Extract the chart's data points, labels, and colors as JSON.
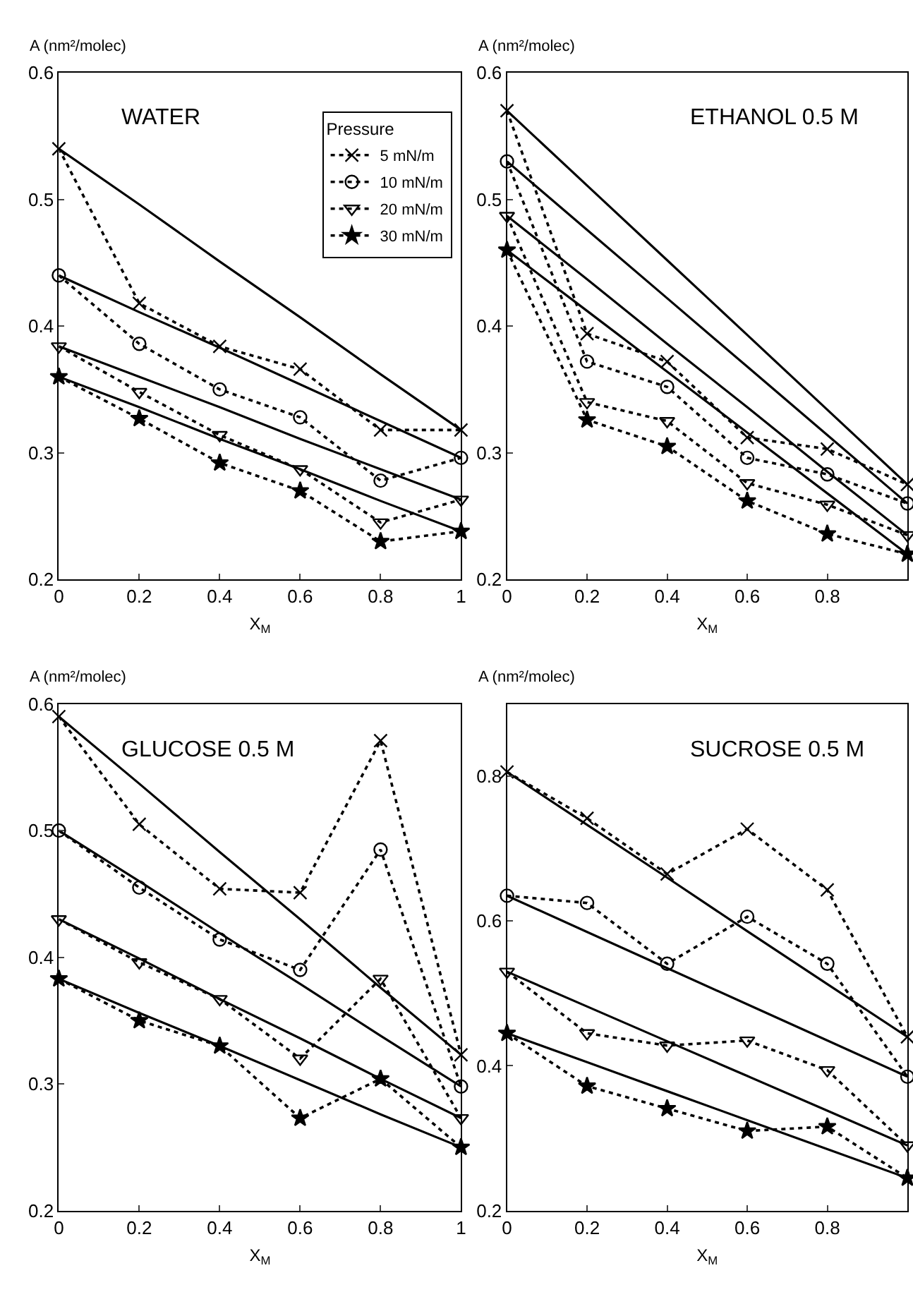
{
  "chart_data": [
    {
      "type": "line",
      "title": "WATER",
      "xlabel": "X$_{M}$",
      "ylabel": "A (nm²/molec)",
      "legend_title": "Pressure",
      "legend": "top right",
      "x": [
        0,
        0.2,
        0.4,
        0.6,
        0.8,
        1
      ],
      "xlim": [
        0,
        1
      ],
      "xticks": [
        0,
        0.2,
        0.4,
        0.6,
        0.8,
        1
      ],
      "ylim": [
        0.2,
        0.6
      ],
      "yticks": [
        0.2,
        0.3,
        0.4,
        0.5,
        0.6
      ],
      "series": [
        {
          "name": "5 mN/m",
          "color": "#000000",
          "marker": "cross",
          "line_style": "dotted",
          "values": [
            0.54,
            0.418,
            0.384,
            0.366,
            0.318,
            0.318
          ]
        },
        {
          "name": "10 mN/m",
          "color": "#000000",
          "marker": "circle",
          "line_style": "dotted",
          "values": [
            0.44,
            0.386,
            0.35,
            0.328,
            0.278,
            0.296
          ]
        },
        {
          "name": "20 mN/m",
          "color": "#000000",
          "marker": "triangle",
          "line_style": "dotted",
          "values": [
            0.384,
            0.348,
            0.314,
            0.287,
            0.245,
            0.263
          ]
        },
        {
          "name": "30 mN/m",
          "color": "#000000",
          "marker": "star",
          "line_style": "dotted",
          "values": [
            0.36,
            0.327,
            0.292,
            0.27,
            0.23,
            0.238
          ]
        },
        {
          "color": "#000000",
          "marker": "none",
          "line_style": "solid",
          "values": [
            0.54,
            0.496,
            0.451,
            0.407,
            0.362,
            0.318
          ]
        },
        {
          "color": "#000000",
          "marker": "none",
          "line_style": "solid",
          "values": [
            0.44,
            0.411,
            0.383,
            0.354,
            0.325,
            0.296
          ]
        },
        {
          "color": "#000000",
          "marker": "none",
          "line_style": "solid",
          "values": [
            0.384,
            0.36,
            0.336,
            0.311,
            0.287,
            0.263
          ]
        },
        {
          "color": "#000000",
          "marker": "none",
          "line_style": "solid",
          "values": [
            0.36,
            0.336,
            0.311,
            0.287,
            0.262,
            0.238
          ]
        }
      ]
    },
    {
      "type": "line",
      "title": "ETHANOL 0.5 M",
      "xlabel": "X$_{M}$",
      "ylabel": "A (nm²/molec)",
      "x": [
        0,
        0.2,
        0.4,
        0.6,
        0.8,
        1
      ],
      "xlim": [
        0,
        1
      ],
      "xticks": [
        0,
        0.2,
        0.4,
        0.6,
        0.8
      ],
      "ylim": [
        0.2,
        0.6
      ],
      "yticks": [
        0.2,
        0.3,
        0.4,
        0.5,
        0.6
      ],
      "series": [
        {
          "color": "#000000",
          "marker": "cross",
          "line_style": "dotted",
          "values": [
            0.57,
            0.394,
            0.372,
            0.312,
            0.303,
            0.275
          ]
        },
        {
          "color": "#000000",
          "marker": "circle",
          "line_style": "dotted",
          "values": [
            0.53,
            0.372,
            0.352,
            0.296,
            0.283,
            0.26
          ]
        },
        {
          "color": "#000000",
          "marker": "triangle",
          "line_style": "dotted",
          "values": [
            0.487,
            0.34,
            0.325,
            0.276,
            0.259,
            0.235
          ]
        },
        {
          "color": "#000000",
          "marker": "star",
          "line_style": "dotted",
          "values": [
            0.46,
            0.326,
            0.305,
            0.262,
            0.236,
            0.22
          ]
        },
        {
          "color": "#000000",
          "marker": "none",
          "line_style": "solid",
          "values": [
            0.57,
            0.511,
            0.452,
            0.393,
            0.334,
            0.275
          ]
        },
        {
          "color": "#000000",
          "marker": "none",
          "line_style": "solid",
          "values": [
            0.53,
            0.476,
            0.422,
            0.368,
            0.314,
            0.26
          ]
        },
        {
          "color": "#000000",
          "marker": "none",
          "line_style": "solid",
          "values": [
            0.487,
            0.437,
            0.386,
            0.336,
            0.285,
            0.235
          ]
        },
        {
          "color": "#000000",
          "marker": "none",
          "line_style": "solid",
          "values": [
            0.46,
            0.412,
            0.364,
            0.316,
            0.268,
            0.22
          ]
        }
      ]
    },
    {
      "type": "line",
      "title": "GLUCOSE 0.5 M",
      "xlabel": "X$_{M}$",
      "ylabel": "A (nm²/molec)",
      "x": [
        0,
        0.2,
        0.4,
        0.6,
        0.8,
        1
      ],
      "xlim": [
        0,
        1
      ],
      "xticks": [
        0,
        0.2,
        0.4,
        0.6,
        0.8,
        1
      ],
      "ylim": [
        0.2,
        0.6
      ],
      "yticks": [
        0.2,
        0.3,
        0.4,
        0.5,
        0.6
      ],
      "series": [
        {
          "color": "#000000",
          "marker": "cross",
          "line_style": "dotted",
          "values": [
            0.59,
            0.505,
            0.454,
            0.451,
            0.571,
            0.323
          ]
        },
        {
          "color": "#000000",
          "marker": "circle",
          "line_style": "dotted",
          "values": [
            0.5,
            0.455,
            0.414,
            0.39,
            0.485,
            0.298
          ]
        },
        {
          "color": "#000000",
          "marker": "triangle",
          "line_style": "dotted",
          "values": [
            0.43,
            0.396,
            0.367,
            0.32,
            0.383,
            0.273
          ]
        },
        {
          "color": "#000000",
          "marker": "star",
          "line_style": "dotted",
          "values": [
            0.383,
            0.35,
            0.33,
            0.273,
            0.304,
            0.25
          ]
        },
        {
          "color": "#000000",
          "marker": "none",
          "line_style": "solid",
          "values": [
            0.59,
            0.537,
            0.483,
            0.43,
            0.376,
            0.323
          ]
        },
        {
          "color": "#000000",
          "marker": "none",
          "line_style": "solid",
          "values": [
            0.5,
            0.46,
            0.419,
            0.379,
            0.338,
            0.298
          ]
        },
        {
          "color": "#000000",
          "marker": "none",
          "line_style": "solid",
          "values": [
            0.43,
            0.399,
            0.367,
            0.336,
            0.304,
            0.273
          ]
        },
        {
          "color": "#000000",
          "marker": "none",
          "line_style": "solid",
          "values": [
            0.383,
            0.356,
            0.33,
            0.303,
            0.276,
            0.25
          ]
        }
      ]
    },
    {
      "type": "line",
      "title": "SUCROSE 0.5 M",
      "xlabel": "X$_{M}$",
      "ylabel": "A (nm²/molec)",
      "x": [
        0,
        0.2,
        0.4,
        0.6,
        0.8,
        1
      ],
      "xlim": [
        0,
        1
      ],
      "xticks": [
        0,
        0.2,
        0.4,
        0.6,
        0.8
      ],
      "ylim": [
        0.2,
        0.9
      ],
      "yticks": [
        0.2,
        0.4,
        0.6,
        0.8
      ],
      "series": [
        {
          "color": "#000000",
          "marker": "cross",
          "line_style": "dotted",
          "values": [
            0.806,
            0.742,
            0.665,
            0.727,
            0.643,
            0.44
          ]
        },
        {
          "color": "#000000",
          "marker": "circle",
          "line_style": "dotted",
          "values": [
            0.635,
            0.625,
            0.541,
            0.606,
            0.541,
            0.385
          ]
        },
        {
          "color": "#000000",
          "marker": "triangle",
          "line_style": "dotted",
          "values": [
            0.53,
            0.445,
            0.428,
            0.435,
            0.394,
            0.29
          ]
        },
        {
          "color": "#000000",
          "marker": "star",
          "line_style": "dotted",
          "values": [
            0.445,
            0.372,
            0.341,
            0.31,
            0.316,
            0.245
          ]
        },
        {
          "color": "#000000",
          "marker": "none",
          "line_style": "solid",
          "values": [
            0.806,
            0.733,
            0.66,
            0.586,
            0.513,
            0.44
          ]
        },
        {
          "color": "#000000",
          "marker": "none",
          "line_style": "solid",
          "values": [
            0.635,
            0.585,
            0.535,
            0.485,
            0.435,
            0.385
          ]
        },
        {
          "color": "#000000",
          "marker": "none",
          "line_style": "solid",
          "values": [
            0.53,
            0.482,
            0.434,
            0.386,
            0.338,
            0.29
          ]
        },
        {
          "color": "#000000",
          "marker": "none",
          "line_style": "solid",
          "values": [
            0.445,
            0.405,
            0.365,
            0.325,
            0.285,
            0.245
          ]
        }
      ]
    }
  ]
}
